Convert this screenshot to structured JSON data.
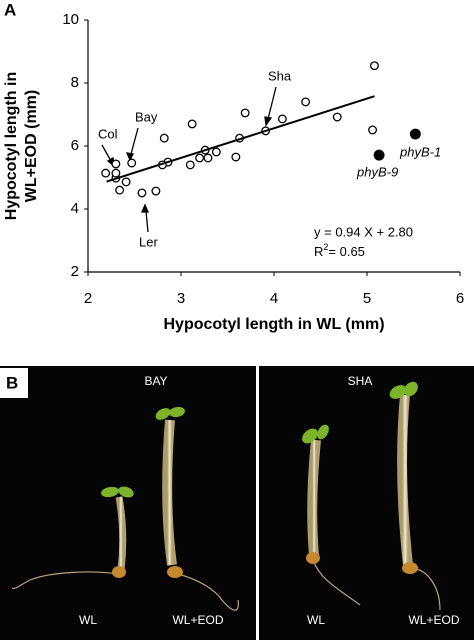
{
  "chart_data": {
    "type": "scatter",
    "panel_label": "A",
    "x_label": "Hypocotyl length in WL (mm)",
    "y_label": [
      "Hypocotyl length in",
      "WL+EOD (mm)"
    ],
    "xlim": [
      2,
      6
    ],
    "xticks": [
      2,
      3,
      4,
      5,
      6
    ],
    "ylim": [
      2,
      10
    ],
    "yticks": [
      2,
      4,
      6,
      8,
      10
    ],
    "series": [
      {
        "name": "accessions",
        "marker": "open",
        "color": "#000000",
        "x": [
          5.08,
          5.06,
          4.68,
          4.34,
          4.09,
          3.91,
          3.69,
          3.63,
          3.59,
          3.38,
          3.29,
          3.26,
          3.2,
          3.1,
          3.12,
          2.82,
          2.86,
          2.8,
          2.73,
          2.58,
          2.47,
          2.41,
          2.34,
          2.3,
          2.3,
          2.3,
          2.19
        ],
        "values": [
          8.55,
          6.51,
          6.92,
          7.4,
          6.86,
          6.48,
          7.05,
          6.25,
          5.65,
          5.81,
          5.62,
          5.87,
          5.62,
          5.4,
          6.7,
          6.25,
          5.49,
          5.4,
          4.57,
          4.51,
          5.46,
          4.86,
          4.6,
          4.98,
          5.43,
          5.14,
          5.14
        ]
      },
      {
        "name": "mutants",
        "marker": "filled",
        "color": "#000000",
        "x": [
          5.13,
          5.52
        ],
        "values": [
          5.71,
          6.38
        ]
      },
      {
        "name": "fit",
        "marker": "line",
        "color": "#000000",
        "x": [
          2.2,
          5.08
        ],
        "values": [
          4.87,
          7.58
        ]
      }
    ],
    "annotations": [
      "Col",
      "Bay",
      "Ler",
      "Sha",
      "phyB-1",
      "phyB-9",
      "y = 0.94 X + 2.80"
    ],
    "r2_label": [
      "R",
      "2",
      "= 0.65"
    ]
  },
  "photo_panel": {
    "panel_label": "B",
    "left": {
      "title": "BAY",
      "labels": [
        "WL",
        "WL+EOD"
      ]
    },
    "right": {
      "title": "SHA",
      "labels": [
        "WL",
        "WL+EOD"
      ]
    }
  }
}
